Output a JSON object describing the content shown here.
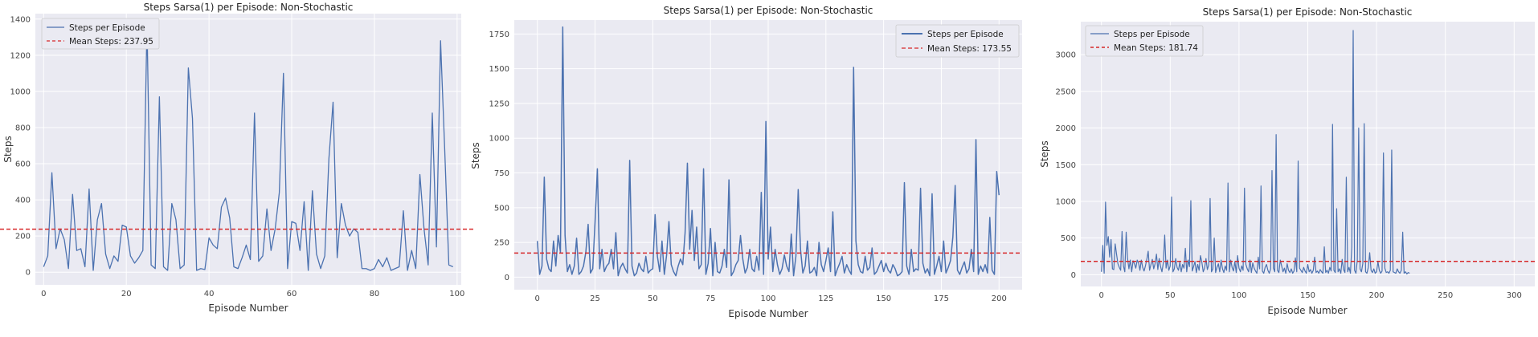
{
  "chart_data": [
    {
      "type": "line",
      "title": "Steps Sarsa(1) per Episode: Non-Stochastic",
      "xlabel": "Episode Number",
      "ylabel": "Steps",
      "xlim": [
        -2,
        101
      ],
      "ylim": [
        -70,
        1430
      ],
      "xticks": [
        0,
        20,
        40,
        60,
        80,
        100
      ],
      "yticks": [
        0,
        200,
        400,
        600,
        800,
        1000,
        1200,
        1400
      ],
      "grid": true,
      "legend_position": "upper left",
      "series": [
        {
          "name": "Steps per Episode",
          "color": "#4c72b0",
          "y": [
            30,
            90,
            550,
            130,
            240,
            180,
            20,
            430,
            120,
            130,
            30,
            460,
            10,
            290,
            380,
            100,
            20,
            90,
            60,
            260,
            250,
            90,
            50,
            80,
            120,
            1370,
            40,
            20,
            970,
            30,
            10,
            380,
            290,
            20,
            40,
            1130,
            850,
            10,
            20,
            15,
            190,
            150,
            130,
            360,
            410,
            300,
            30,
            20,
            80,
            150,
            70,
            880,
            60,
            90,
            350,
            120,
            240,
            440,
            1100,
            20,
            280,
            270,
            120,
            390,
            10,
            450,
            100,
            20,
            90,
            630,
            940,
            80,
            380,
            260,
            200,
            240,
            220,
            20,
            20,
            10,
            20,
            70,
            30,
            80,
            10,
            20,
            30,
            340,
            10,
            120,
            20,
            540,
            240,
            40,
            880,
            140,
            1280,
            680,
            40,
            30
          ]
        }
      ],
      "mean_line": {
        "label": "Mean Steps: 237.95",
        "value": 237.95,
        "color": "#d62728"
      }
    },
    {
      "type": "line",
      "title": "Steps Sarsa(1) per Episode: Non-Stochastic",
      "xlabel": "Episode Number",
      "ylabel": "Steps",
      "xlim": [
        -10,
        210
      ],
      "ylim": [
        -90,
        1850
      ],
      "xticks": [
        0,
        25,
        50,
        75,
        100,
        125,
        150,
        175,
        200
      ],
      "yticks": [
        0,
        250,
        500,
        750,
        1000,
        1250,
        1500,
        1750
      ],
      "grid": true,
      "legend_position": "upper right",
      "series": [
        {
          "name": "Steps per Episode",
          "color": "#4c72b0",
          "y": [
            260,
            20,
            80,
            720,
            130,
            60,
            40,
            260,
            80,
            300,
            180,
            1800,
            300,
            40,
            90,
            20,
            80,
            280,
            20,
            40,
            80,
            180,
            380,
            30,
            60,
            400,
            780,
            60,
            200,
            40,
            80,
            100,
            200,
            60,
            320,
            10,
            70,
            100,
            60,
            30,
            840,
            80,
            10,
            30,
            100,
            60,
            40,
            150,
            30,
            50,
            60,
            450,
            150,
            40,
            260,
            20,
            160,
            400,
            90,
            40,
            10,
            80,
            130,
            90,
            320,
            820,
            200,
            480,
            120,
            360,
            60,
            90,
            780,
            20,
            100,
            350,
            10,
            250,
            40,
            30,
            80,
            200,
            70,
            700,
            10,
            40,
            90,
            120,
            300,
            130,
            30,
            70,
            200,
            60,
            40,
            150,
            50,
            610,
            20,
            1120,
            130,
            360,
            40,
            200,
            90,
            20,
            60,
            160,
            80,
            40,
            310,
            10,
            150,
            630,
            200,
            30,
            80,
            260,
            30,
            40,
            70,
            10,
            250,
            90,
            40,
            120,
            210,
            40,
            470,
            10,
            60,
            100,
            150,
            30,
            90,
            50,
            20,
            1510,
            260,
            90,
            40,
            30,
            150,
            50,
            70,
            210,
            20,
            40,
            80,
            120,
            40,
            100,
            50,
            30,
            90,
            60,
            10,
            20,
            40,
            680,
            80,
            20,
            200,
            40,
            60,
            50,
            640,
            100,
            30,
            60,
            10,
            600,
            20,
            80,
            150,
            40,
            260,
            30,
            70,
            120,
            290,
            660,
            50,
            20,
            70,
            110,
            30,
            60,
            200,
            40,
            990,
            20,
            80,
            40,
            90,
            30,
            430,
            50,
            20,
            760,
            590
          ]
        }
      ],
      "mean_line": {
        "label": "Mean Steps: 173.55",
        "value": 173.55,
        "color": "#d62728"
      }
    },
    {
      "type": "line",
      "title": "Steps Sarsa(1) per Episode: Non-Stochastic",
      "xlabel": "Episode Number",
      "ylabel": "Steps",
      "xlim": [
        -15,
        315
      ],
      "ylim": [
        -160,
        3450
      ],
      "xticks": [
        0,
        50,
        100,
        150,
        200,
        250,
        300
      ],
      "yticks": [
        0,
        500,
        1000,
        1500,
        2000,
        2500,
        3000
      ],
      "grid": true,
      "legend_position": "upper left",
      "series": [
        {
          "name": "Steps per Episode",
          "color": "#4c72b0",
          "y": [
            40,
            400,
            20,
            990,
            400,
            520,
            240,
            480,
            80,
            70,
            420,
            280,
            150,
            100,
            60,
            590,
            120,
            40,
            580,
            220,
            80,
            200,
            40,
            190,
            150,
            90,
            200,
            160,
            60,
            200,
            100,
            50,
            120,
            210,
            320,
            60,
            140,
            210,
            80,
            150,
            280,
            70,
            220,
            110,
            40,
            160,
            540,
            90,
            200,
            60,
            120,
            1060,
            40,
            80,
            220,
            100,
            60,
            170,
            40,
            140,
            90,
            360,
            40,
            200,
            110,
            1010,
            50,
            110,
            180,
            30,
            140,
            60,
            260,
            170,
            40,
            90,
            220,
            70,
            130,
            1040,
            40,
            80,
            500,
            30,
            100,
            150,
            40,
            200,
            80,
            30,
            120,
            60,
            1250,
            40,
            200,
            100,
            50,
            180,
            30,
            260,
            90,
            40,
            120,
            60,
            1180,
            140,
            80,
            40,
            200,
            30,
            160,
            90,
            50,
            20,
            240,
            80,
            1210,
            50,
            20,
            100,
            140,
            60,
            20,
            80,
            1420,
            90,
            40,
            1910,
            60,
            30,
            200,
            120,
            40,
            90,
            20,
            150,
            60,
            30,
            80,
            20,
            50,
            230,
            40,
            1550,
            90,
            60,
            30,
            100,
            50,
            20,
            140,
            40,
            70,
            20,
            60,
            240,
            30,
            50,
            20,
            70,
            40,
            20,
            380,
            30,
            60,
            20,
            100,
            50,
            2050,
            60,
            30,
            900,
            40,
            80,
            20,
            210,
            70,
            30,
            1330,
            40,
            100,
            20,
            380,
            3330,
            60,
            20,
            200,
            2000,
            80,
            40,
            150,
            2060,
            40,
            20,
            100,
            300,
            60,
            30,
            80,
            20,
            40,
            180,
            60,
            20,
            50,
            1660,
            90,
            30,
            40,
            20,
            60,
            1700,
            40,
            30,
            20,
            80,
            40,
            20,
            60,
            580,
            20,
            40,
            10,
            30,
            20
          ]
        }
      ],
      "mean_line": {
        "label": "Mean Steps: 181.74",
        "value": 181.74,
        "color": "#d62728"
      }
    }
  ]
}
